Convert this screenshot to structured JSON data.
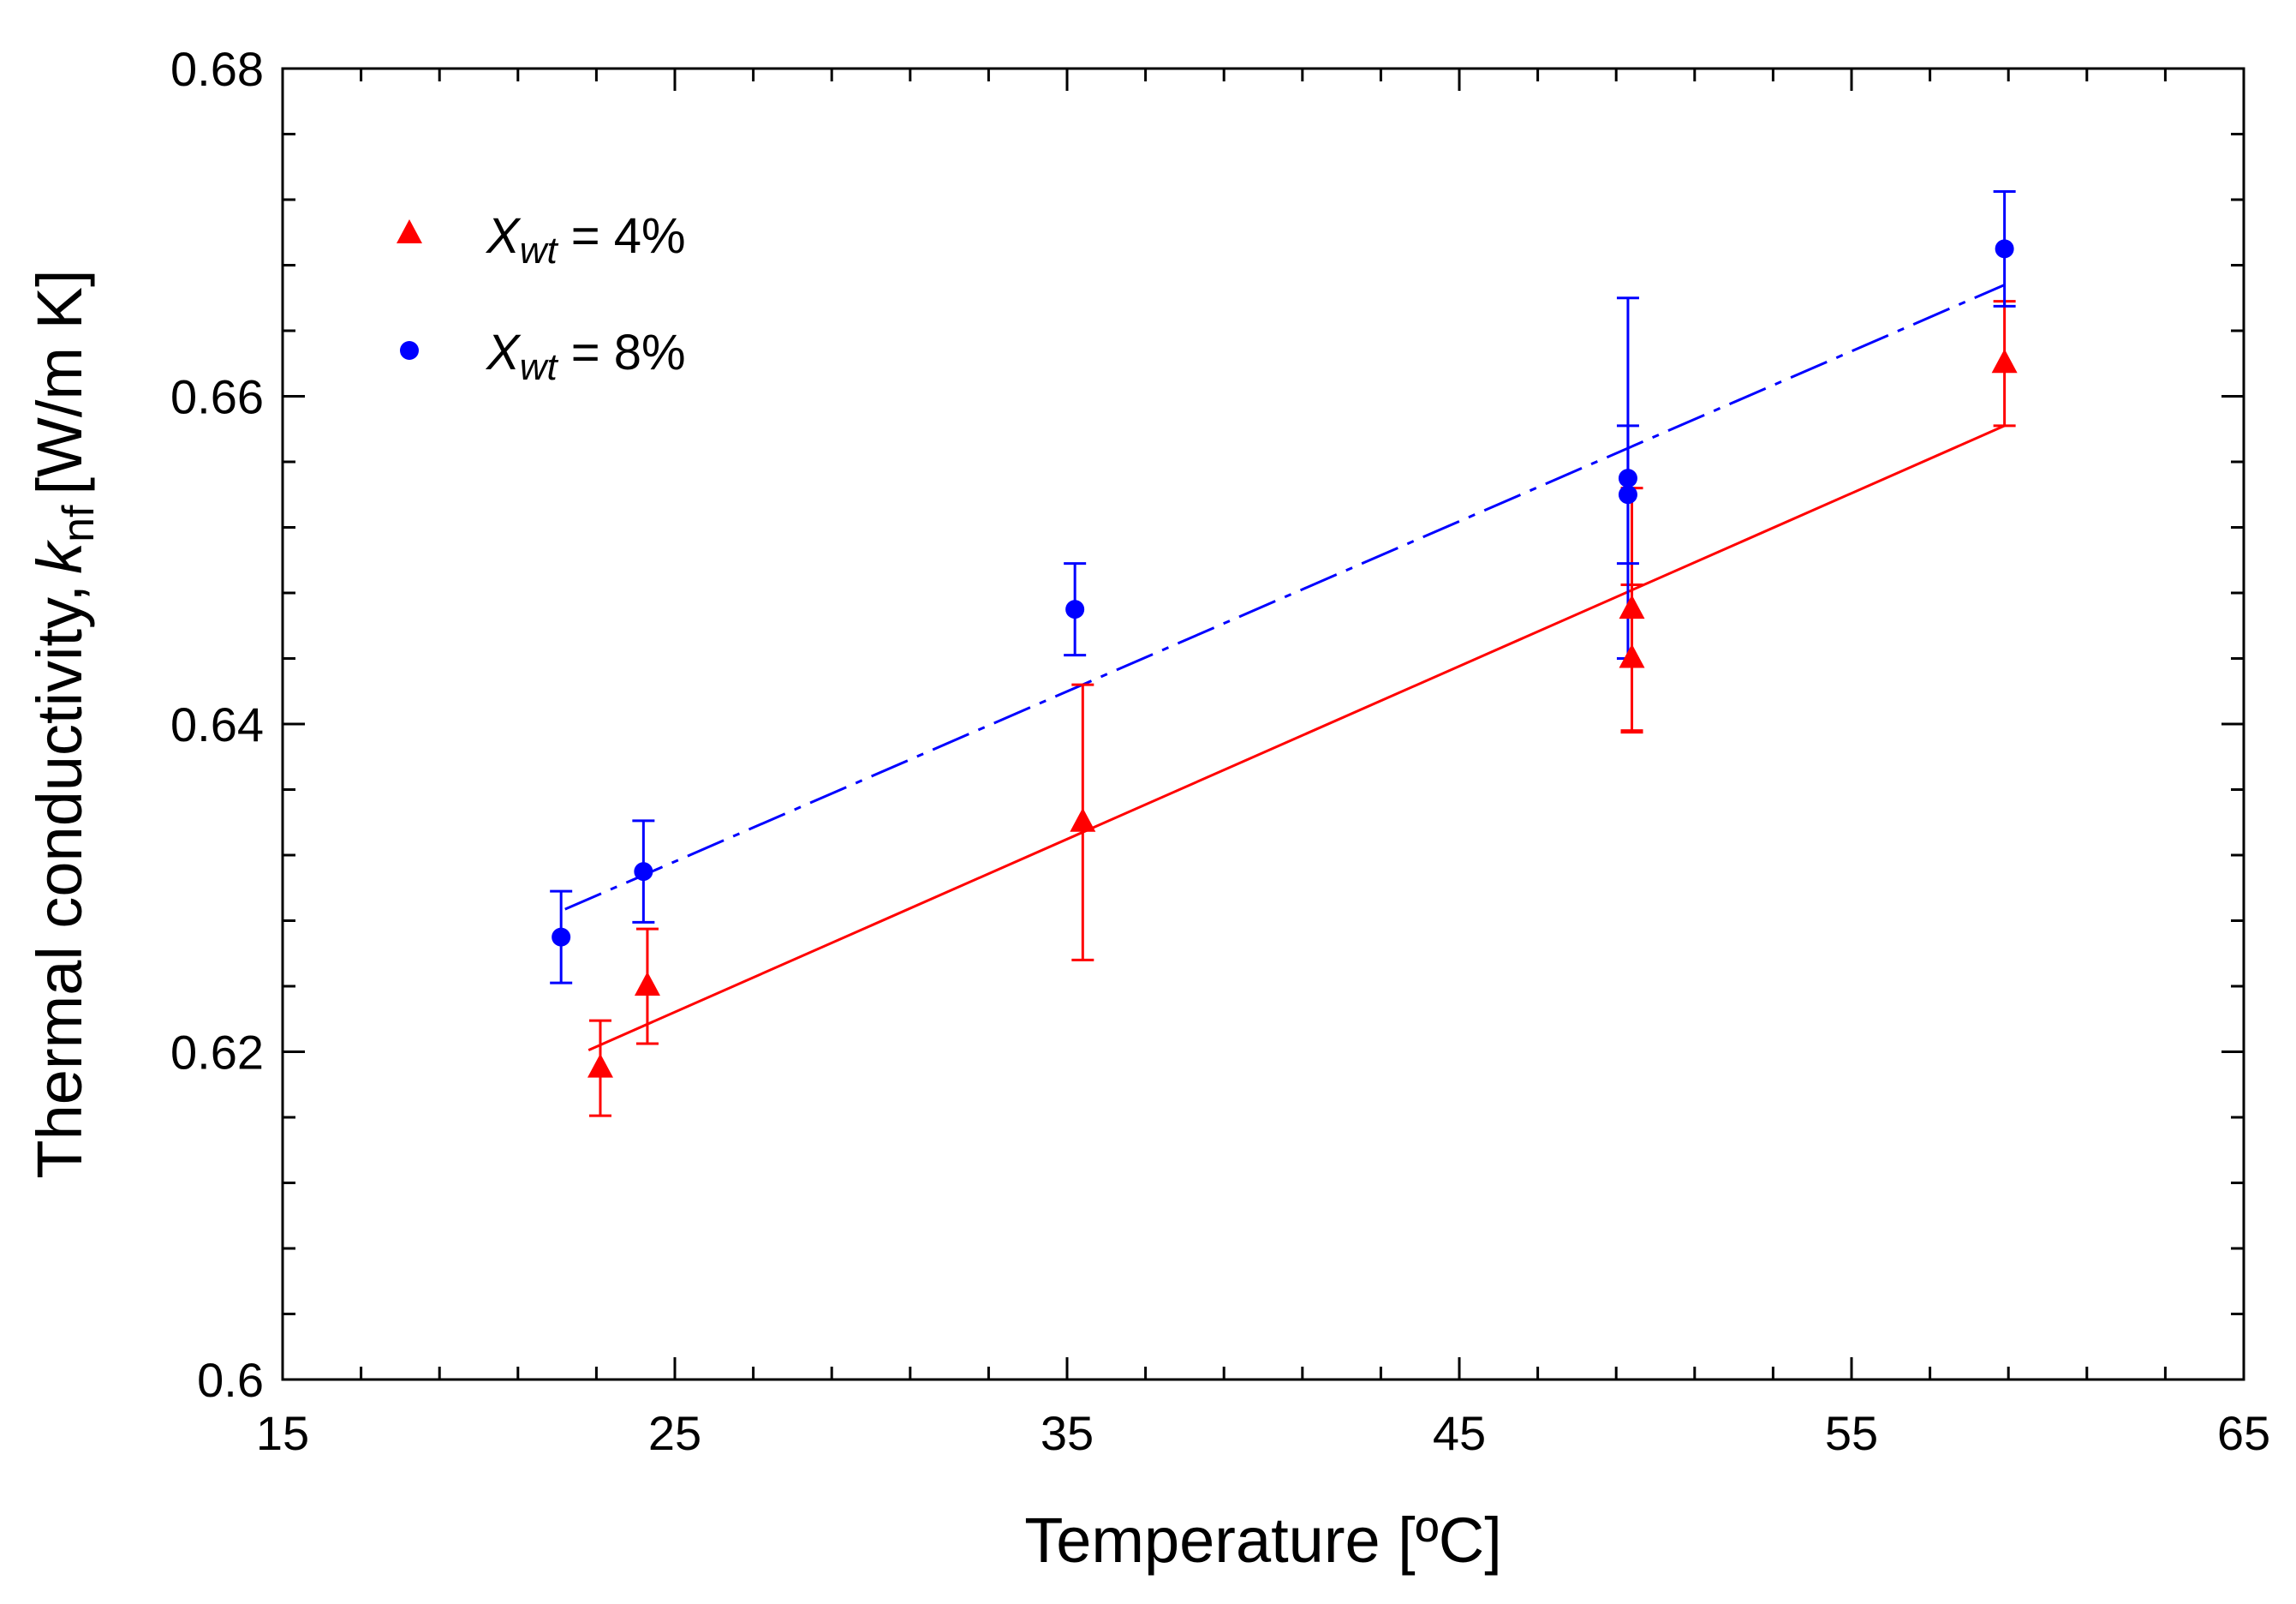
{
  "chart_data": {
    "type": "scatter",
    "xlabel": "Temperature [ºC]",
    "ylabel": {
      "text": "Thermal conductivity,",
      "var": "k",
      "sub": "nf",
      "unit": "[W/m K]"
    },
    "xlim": [
      15,
      65
    ],
    "ylim": [
      0.6,
      0.68
    ],
    "xticks": [
      15,
      25,
      35,
      45,
      55,
      65
    ],
    "yticks": [
      0.6,
      0.62,
      0.64,
      0.66,
      0.68
    ],
    "xtick_labels": [
      "15",
      "25",
      "35",
      "45",
      "55",
      "65"
    ],
    "ytick_labels": [
      "0.6",
      "0.62",
      "0.64",
      "0.66",
      "0.68"
    ],
    "grid": false,
    "legend_position": "top-left",
    "series": [
      {
        "name": "X_wt = 4%",
        "legend": {
          "var": "X",
          "sub": "wt",
          "rest": " = 4%"
        },
        "marker": "triangle",
        "color": "#ff0000",
        "line_style": "solid",
        "points": [
          {
            "x": 23.1,
            "y": 0.619,
            "err": 0.0029
          },
          {
            "x": 24.3,
            "y": 0.624,
            "err": 0.0035
          },
          {
            "x": 35.4,
            "y": 0.634,
            "err": 0.0084
          },
          {
            "x": 49.4,
            "y": 0.647,
            "err": 0.0074
          },
          {
            "x": 49.4,
            "y": 0.644,
            "err": 0.0045
          },
          {
            "x": 58.9,
            "y": 0.662,
            "err": 0.0038
          }
        ],
        "fit": {
          "x": [
            22.8,
            58.9
          ],
          "y": [
            0.6201,
            0.6582
          ]
        }
      },
      {
        "name": "X_wt = 8%",
        "legend": {
          "var": "X",
          "sub": "wt",
          "rest": " = 8%"
        },
        "marker": "circle",
        "color": "#0000ff",
        "line_style": "dash-dot",
        "points": [
          {
            "x": 22.1,
            "y": 0.627,
            "err": 0.0028
          },
          {
            "x": 24.2,
            "y": 0.631,
            "err": 0.0031
          },
          {
            "x": 35.2,
            "y": 0.647,
            "err": 0.0028
          },
          {
            "x": 49.3,
            "y": 0.655,
            "err": 0.011
          },
          {
            "x": 49.3,
            "y": 0.654,
            "err": 0.0042
          },
          {
            "x": 58.9,
            "y": 0.669,
            "err": 0.0035
          }
        ],
        "fit": {
          "x": [
            22.2,
            58.9
          ],
          "y": [
            0.6287,
            0.6668
          ]
        }
      }
    ]
  }
}
